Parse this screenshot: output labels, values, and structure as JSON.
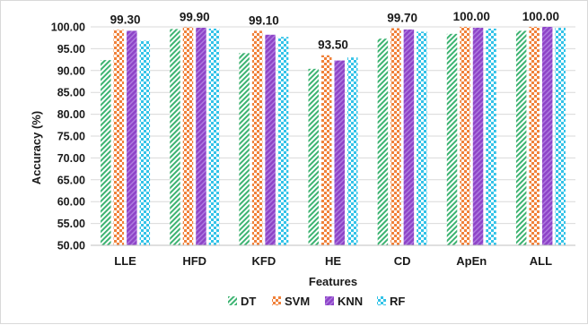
{
  "chart_data": {
    "type": "bar",
    "xlabel": "Features",
    "ylabel": "Accuracy (%)",
    "ylim": [
      50,
      100
    ],
    "ytick_step": 5,
    "yticks": [
      "50.00",
      "55.00",
      "60.00",
      "65.00",
      "70.00",
      "75.00",
      "80.00",
      "85.00",
      "90.00",
      "95.00",
      "100.00"
    ],
    "grid": true,
    "legend": "bottom",
    "categories": [
      "LLE",
      "HFD",
      "KFD",
      "HE",
      "CD",
      "ApEn",
      "ALL"
    ],
    "series": [
      {
        "name": "DT",
        "color": "#3cb371",
        "pattern": "diagonal-hatch",
        "values": [
          92.4,
          99.5,
          94.0,
          90.4,
          97.3,
          98.4,
          99.1
        ]
      },
      {
        "name": "SVM",
        "color": "#f0813a",
        "pattern": "checker",
        "values": [
          99.3,
          99.9,
          99.1,
          93.5,
          99.7,
          100.0,
          100.0
        ]
      },
      {
        "name": "KNN",
        "color": "#9b59d0",
        "pattern": "solid-hatch",
        "values": [
          99.1,
          99.8,
          98.2,
          92.3,
          99.4,
          99.8,
          100.0
        ]
      },
      {
        "name": "RF",
        "color": "#33c3e8",
        "pattern": "checker",
        "values": [
          96.8,
          99.6,
          97.7,
          93.0,
          98.9,
          99.6,
          99.8
        ]
      }
    ],
    "data_labels": [
      {
        "category": "LLE",
        "text": "99.30"
      },
      {
        "category": "HFD",
        "text": "99.90"
      },
      {
        "category": "KFD",
        "text": "99.10"
      },
      {
        "category": "HE",
        "text": "93.50"
      },
      {
        "category": "CD",
        "text": "99.70"
      },
      {
        "category": "ApEn",
        "text": "100.00"
      },
      {
        "category": "ALL",
        "text": "100.00"
      }
    ]
  }
}
